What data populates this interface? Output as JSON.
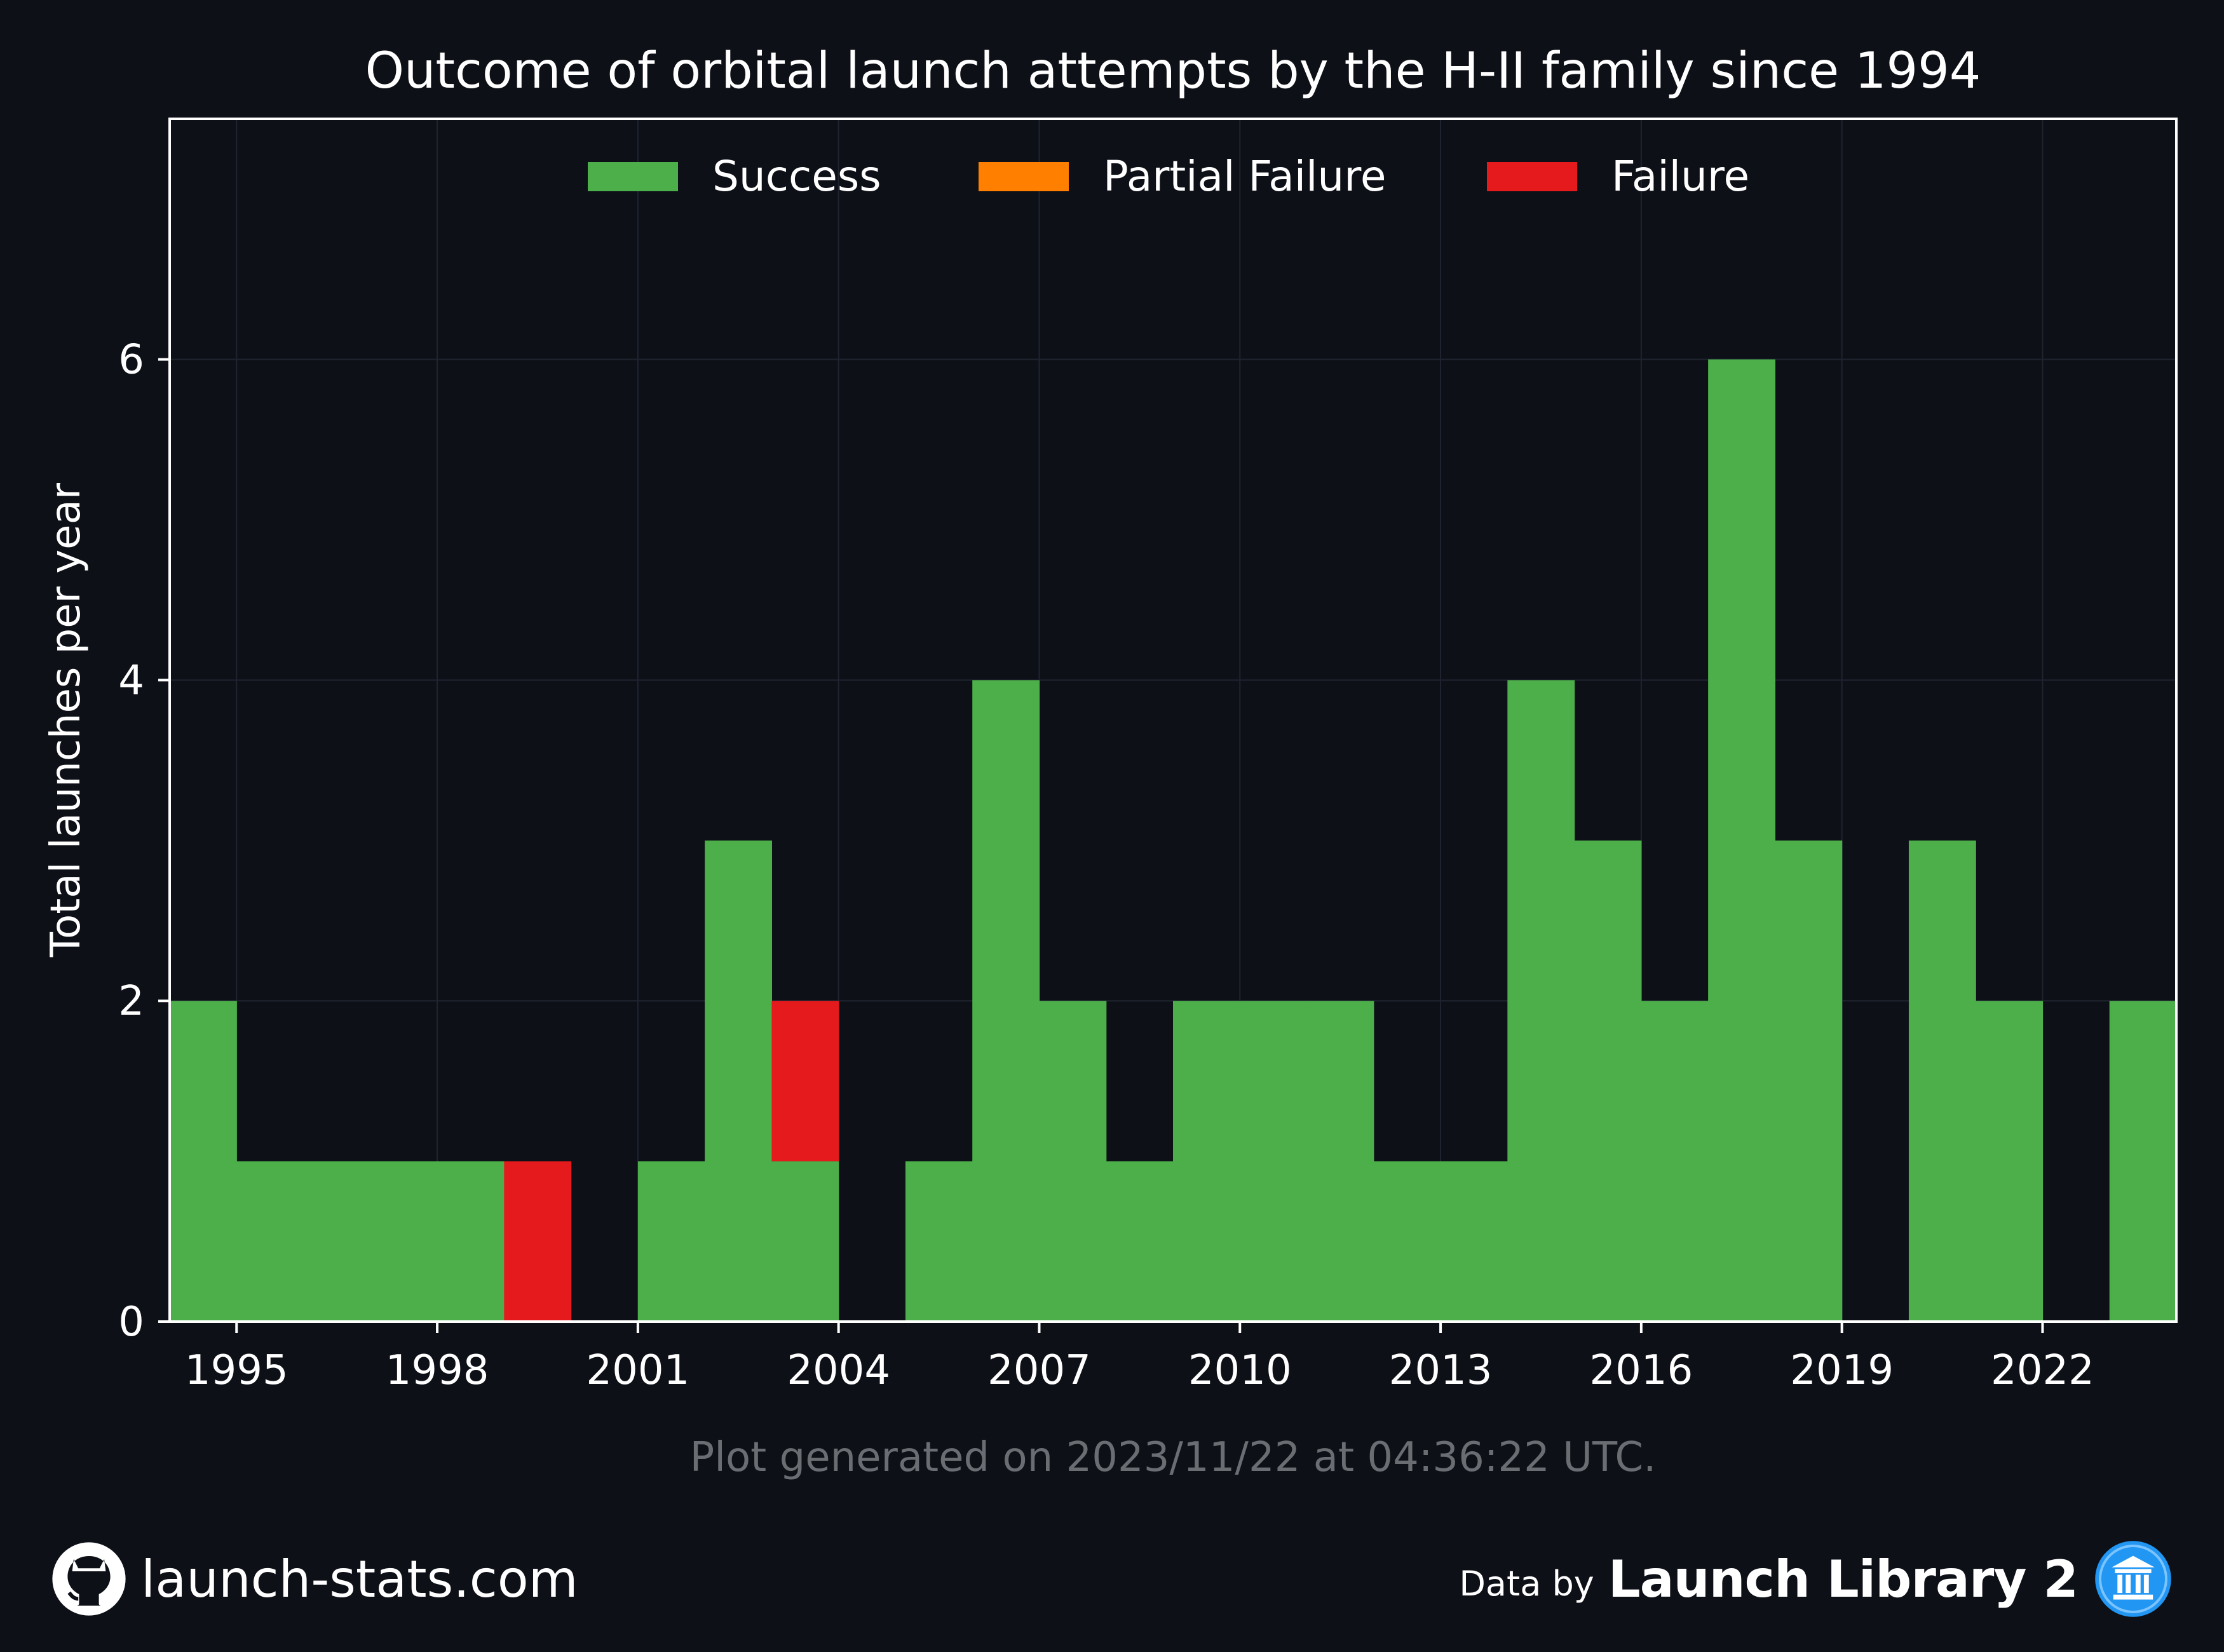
{
  "chart_data": {
    "type": "bar",
    "title": "Outcome of orbital launch attempts by the H-II family since 1994",
    "ylabel": "Total launches per year",
    "xlabel": "",
    "xlim": [
      1994,
      2024
    ],
    "ylim": [
      0,
      7.5
    ],
    "x_ticks": [
      "1995",
      "1998",
      "2001",
      "2004",
      "2007",
      "2010",
      "2013",
      "2016",
      "2019",
      "2022"
    ],
    "y_ticks": [
      "0",
      "2",
      "4",
      "6"
    ],
    "grid": true,
    "stacked": true,
    "legend_position": "top-center",
    "categories": [
      1994,
      1995,
      1996,
      1997,
      1998,
      1999,
      2000,
      2001,
      2002,
      2003,
      2004,
      2005,
      2006,
      2007,
      2008,
      2009,
      2010,
      2011,
      2012,
      2013,
      2014,
      2015,
      2016,
      2017,
      2018,
      2019,
      2020,
      2021,
      2022,
      2023
    ],
    "series": [
      {
        "name": "Success",
        "color": "#4daf4a",
        "values": [
          2,
          1,
          1,
          1,
          1,
          0,
          0,
          1,
          3,
          1,
          0,
          1,
          4,
          2,
          1,
          2,
          2,
          2,
          1,
          1,
          4,
          3,
          2,
          6,
          3,
          0,
          3,
          2,
          0,
          2
        ]
      },
      {
        "name": "Partial Failure",
        "color": "#ff7f00",
        "values": [
          0,
          0,
          0,
          0,
          0,
          0,
          0,
          0,
          0,
          0,
          0,
          0,
          0,
          0,
          0,
          0,
          0,
          0,
          0,
          0,
          0,
          0,
          0,
          0,
          0,
          0,
          0,
          0,
          0,
          0
        ]
      },
      {
        "name": "Failure",
        "color": "#e41a1c",
        "values": [
          0,
          0,
          0,
          0,
          0,
          1,
          0,
          0,
          0,
          1,
          0,
          0,
          0,
          0,
          0,
          0,
          0,
          0,
          0,
          0,
          0,
          0,
          0,
          0,
          0,
          0,
          0,
          0,
          0,
          0
        ]
      }
    ]
  },
  "note": "Plot generated on 2023/11/22 at 04:36:22 UTC.",
  "footer": {
    "site": "launch-stats.com",
    "github_icon": "github-icon",
    "data_by": "Data by",
    "library": "Launch Library 2",
    "library_icon": "launch-library-icon",
    "accent": "#2196f3"
  },
  "colors": {
    "background": "#0d1017",
    "grid": "#1f2430",
    "axes": "#ffffff",
    "note_text": "#6a6e73"
  }
}
